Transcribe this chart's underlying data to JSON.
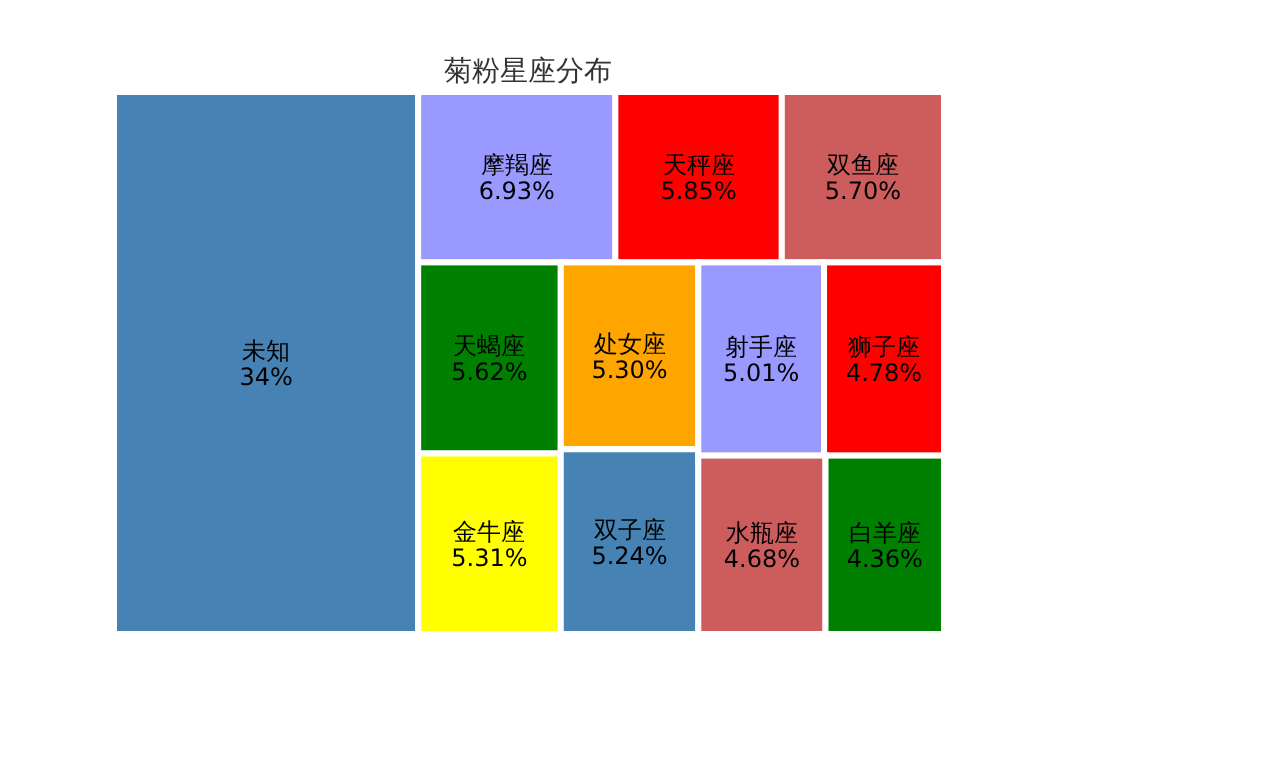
{
  "chart_data": {
    "type": "other",
    "title": "菊粉星座分布",
    "categories": [
      "未知",
      "摩羯座",
      "天秤座",
      "双鱼座",
      "天蝎座",
      "金牛座",
      "处女座",
      "双子座",
      "射手座",
      "狮子座",
      "水瓶座",
      "白羊座"
    ],
    "values": [
      34,
      6.93,
      5.85,
      5.7,
      5.62,
      5.31,
      5.3,
      5.24,
      5.01,
      4.78,
      4.68,
      4.36
    ],
    "value_labels": [
      "34%",
      "6.93%",
      "5.85%",
      "5.70%",
      "5.62%",
      "5.31%",
      "5.30%",
      "5.24%",
      "5.01%",
      "4.78%",
      "4.68%",
      "4.36%"
    ],
    "colors": [
      "#4682b4",
      "#9999ff",
      "#ff0000",
      "#cd5c5c",
      "#008000",
      "#ffff00",
      "#ffa500",
      "#4682b4",
      "#9999ff",
      "#ff0000",
      "#cd5c5c",
      "#008000"
    ]
  }
}
